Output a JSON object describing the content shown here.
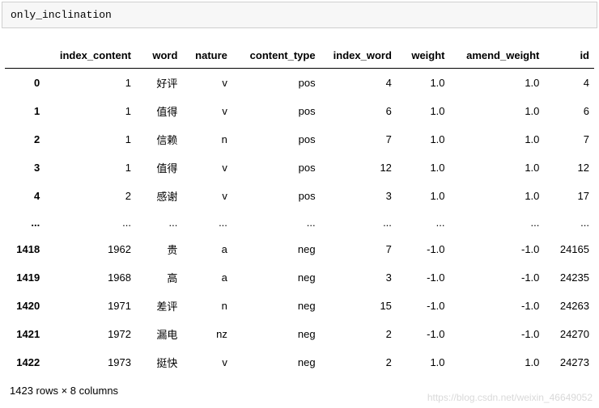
{
  "code_cell": {
    "text": "only_inclination"
  },
  "table": {
    "columns": [
      "index_content",
      "word",
      "nature",
      "content_type",
      "index_word",
      "weight",
      "amend_weight",
      "id"
    ],
    "rows": [
      {
        "idx": "0",
        "cells": [
          "1",
          "好评",
          "v",
          "pos",
          "4",
          "1.0",
          "1.0",
          "4"
        ]
      },
      {
        "idx": "1",
        "cells": [
          "1",
          "值得",
          "v",
          "pos",
          "6",
          "1.0",
          "1.0",
          "6"
        ]
      },
      {
        "idx": "2",
        "cells": [
          "1",
          "信赖",
          "n",
          "pos",
          "7",
          "1.0",
          "1.0",
          "7"
        ]
      },
      {
        "idx": "3",
        "cells": [
          "1",
          "值得",
          "v",
          "pos",
          "12",
          "1.0",
          "1.0",
          "12"
        ]
      },
      {
        "idx": "4",
        "cells": [
          "2",
          "感谢",
          "v",
          "pos",
          "3",
          "1.0",
          "1.0",
          "17"
        ]
      },
      {
        "idx": "...",
        "cells": [
          "...",
          "...",
          "...",
          "...",
          "...",
          "...",
          "...",
          "..."
        ],
        "ellipsis": true
      },
      {
        "idx": "1418",
        "cells": [
          "1962",
          "贵",
          "a",
          "neg",
          "7",
          "-1.0",
          "-1.0",
          "24165"
        ]
      },
      {
        "idx": "1419",
        "cells": [
          "1968",
          "高",
          "a",
          "neg",
          "3",
          "-1.0",
          "-1.0",
          "24235"
        ]
      },
      {
        "idx": "1420",
        "cells": [
          "1971",
          "差评",
          "n",
          "neg",
          "15",
          "-1.0",
          "-1.0",
          "24263"
        ]
      },
      {
        "idx": "1421",
        "cells": [
          "1972",
          "漏电",
          "nz",
          "neg",
          "2",
          "-1.0",
          "-1.0",
          "24270"
        ]
      },
      {
        "idx": "1422",
        "cells": [
          "1973",
          "挺快",
          "v",
          "neg",
          "2",
          "1.0",
          "1.0",
          "24273"
        ]
      }
    ],
    "shape_text": "1423 rows × 8 columns"
  },
  "watermark": "https://blog.csdn.net/weixin_46649052"
}
